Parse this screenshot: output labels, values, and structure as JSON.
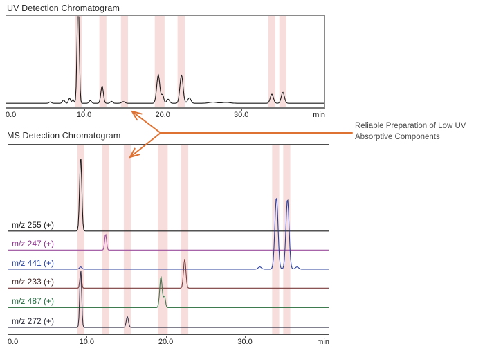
{
  "annotation": {
    "line1": "Reliable Preparation of Low UV",
    "line2": "Absorptive Components"
  },
  "arrow": {
    "color": "#DE7232",
    "branch_point": [
      232,
      192
    ],
    "line_end_x": 509,
    "up_tip": [
      191,
      161
    ],
    "down_tip": [
      188,
      227
    ]
  },
  "chart_data": [
    {
      "id": "uv",
      "type": "line",
      "title": "UV Detection Chromatogram",
      "x_range": [
        0,
        40.5
      ],
      "x_ticks": [
        {
          "label": "0.0",
          "t": 0,
          "align": "left"
        },
        {
          "label": "10.0",
          "t": 10
        },
        {
          "label": "20.0",
          "t": 20
        },
        {
          "label": "30.0",
          "t": 30
        }
      ],
      "x_unit": "min",
      "grid": false,
      "band_color": "#F7DEDC",
      "highlight_bands": [
        {
          "from": 8.75,
          "to": 9.6
        },
        {
          "from": 11.85,
          "to": 12.75
        },
        {
          "from": 14.6,
          "to": 15.5
        },
        {
          "from": 18.9,
          "to": 20.15
        },
        {
          "from": 21.8,
          "to": 22.75
        },
        {
          "from": 33.35,
          "to": 34.25
        },
        {
          "from": 34.75,
          "to": 35.65
        }
      ],
      "series": [
        {
          "sid": "uv-signal",
          "label": "",
          "color": "#1a1a1a",
          "baseline": 0.956,
          "peaks": [
            {
              "t": 5.6,
              "h": 0.015,
              "w": 0.15
            },
            {
              "t": 7.3,
              "h": 0.035,
              "w": 0.15
            },
            {
              "t": 8.05,
              "h": 0.055,
              "w": 0.13
            },
            {
              "t": 8.5,
              "h": 0.04,
              "w": 0.12
            },
            {
              "t": 9.15,
              "h": 1.3,
              "w": 0.13
            },
            {
              "t": 10.7,
              "h": 0.03,
              "w": 0.15
            },
            {
              "t": 12.2,
              "h": 0.19,
              "w": 0.16
            },
            {
              "t": 13.4,
              "h": 0.022,
              "w": 0.15
            },
            {
              "t": 14.9,
              "h": 0.018,
              "w": 0.2
            },
            {
              "t": 19.35,
              "h": 0.31,
              "w": 0.2
            },
            {
              "t": 19.9,
              "h": 0.09,
              "w": 0.15
            },
            {
              "t": 20.6,
              "h": 0.045,
              "w": 0.18
            },
            {
              "t": 22.3,
              "h": 0.31,
              "w": 0.2
            },
            {
              "t": 23.3,
              "h": 0.06,
              "w": 0.2
            },
            {
              "t": 26.3,
              "h": 0.012,
              "w": 0.5
            },
            {
              "t": 28.0,
              "h": 0.01,
              "w": 0.5
            },
            {
              "t": 33.8,
              "h": 0.1,
              "w": 0.2
            },
            {
              "t": 35.2,
              "h": 0.12,
              "w": 0.2
            }
          ]
        }
      ]
    },
    {
      "id": "ms",
      "type": "line",
      "title": "MS Detection Chromatogram",
      "x_range": [
        0,
        40.5
      ],
      "x_ticks": [
        {
          "label": "0.0",
          "t": 0,
          "align": "left"
        },
        {
          "label": "10.0",
          "t": 10
        },
        {
          "label": "20.0",
          "t": 20
        },
        {
          "label": "30.0",
          "t": 30
        }
      ],
      "x_unit": "min",
      "grid": false,
      "band_color": "#F7DEDC",
      "highlight_bands": [
        {
          "from": 8.75,
          "to": 9.6
        },
        {
          "from": 11.85,
          "to": 12.75
        },
        {
          "from": 14.6,
          "to": 15.5
        },
        {
          "from": 18.9,
          "to": 20.15
        },
        {
          "from": 21.8,
          "to": 22.75
        },
        {
          "from": 33.35,
          "to": 34.25
        },
        {
          "from": 34.75,
          "to": 35.65
        }
      ],
      "series": [
        {
          "sid": "mz-255",
          "label": "m/z 255 (+)",
          "color": "#1a1a1a",
          "label_color": "#1a1a1a",
          "baseline": 0.457,
          "peaks": [
            {
              "t": 9.15,
              "h": 0.395,
              "w": 0.14
            }
          ]
        },
        {
          "sid": "mz-247",
          "label": "m/z 247 (+)",
          "color": "#9C4F9C",
          "label_color": "#8E2F8E",
          "baseline": 0.558,
          "peaks": [
            {
              "t": 12.3,
              "h": 0.085,
              "w": 0.12
            }
          ]
        },
        {
          "sid": "mz-441",
          "label": "m/z 441 (+)",
          "color": "#2B3F9E",
          "label_color": "#2742A6",
          "baseline": 0.659,
          "peaks": [
            {
              "t": 9.15,
              "h": 0.012,
              "w": 0.15
            },
            {
              "t": 31.8,
              "h": 0.012,
              "w": 0.2
            },
            {
              "t": 33.9,
              "h": 0.382,
              "w": 0.2
            },
            {
              "t": 35.3,
              "h": 0.372,
              "w": 0.2
            },
            {
              "t": 36.5,
              "h": 0.012,
              "w": 0.2
            }
          ]
        },
        {
          "sid": "mz-233",
          "label": "m/z 233 (+)",
          "color": "#7A3C3C",
          "label_color": "#402424",
          "baseline": 0.7595,
          "peaks": [
            {
              "t": 9.15,
              "h": 0.082,
              "w": 0.11
            },
            {
              "t": 22.3,
              "h": 0.155,
              "w": 0.15
            }
          ]
        },
        {
          "sid": "mz-487",
          "label": "m/z 487 (+)",
          "color": "#3E7B4F",
          "label_color": "#1F6B3C",
          "baseline": 0.8625,
          "peaks": [
            {
              "t": 19.3,
              "h": 0.163,
              "w": 0.16
            },
            {
              "t": 19.75,
              "h": 0.06,
              "w": 0.12
            }
          ]
        },
        {
          "sid": "mz-272",
          "label": "m/z 272 (+)",
          "color": "#34344A",
          "label_color": "#2B2B3B",
          "baseline": 0.9675,
          "peaks": [
            {
              "t": 9.15,
              "h": 0.31,
              "w": 0.12
            },
            {
              "t": 15.05,
              "h": 0.058,
              "w": 0.14
            }
          ]
        }
      ]
    }
  ]
}
